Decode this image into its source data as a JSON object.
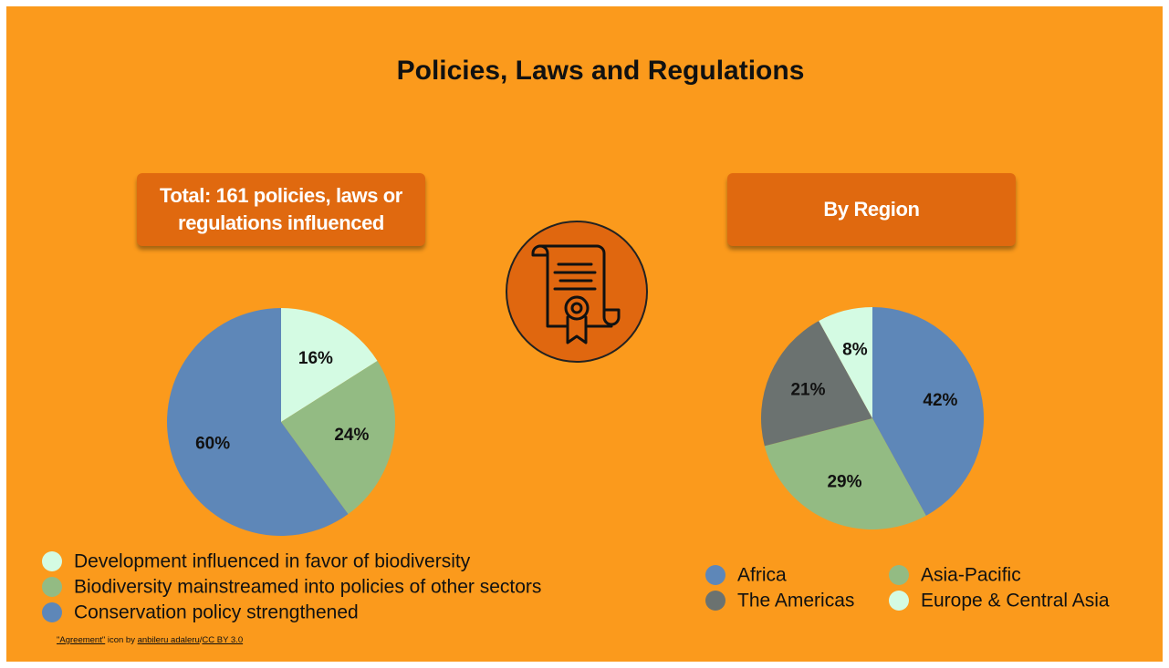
{
  "title": "Policies, Laws and Regulations",
  "chart_data": [
    {
      "type": "pie",
      "title": "Total: 161 policies, laws or regulations influenced",
      "categories": [
        "Development influenced in favor of biodiversity",
        "Biodiversity mainstreamed into policies of other sectors",
        "Conservation policy strengthened"
      ],
      "values": [
        16,
        24,
        60
      ],
      "value_labels": [
        "16%",
        "24%",
        "60%"
      ],
      "colors": [
        "#d4fbe3",
        "#93bb83",
        "#5e87b8"
      ]
    },
    {
      "type": "pie",
      "title": "By Region",
      "categories": [
        "Africa",
        "Asia-Pacific",
        "The Americas",
        "Europe & Central Asia"
      ],
      "values": [
        42,
        29,
        21,
        8
      ],
      "value_labels": [
        "42%",
        "29%",
        "21%",
        "8%"
      ],
      "colors": [
        "#5e87b8",
        "#93bb83",
        "#6b7270",
        "#d4fbe3"
      ]
    }
  ],
  "credit": [
    "\"Agreement\"",
    " icon by ",
    "anbileru adaleru",
    "/",
    "CC BY 3.0"
  ]
}
